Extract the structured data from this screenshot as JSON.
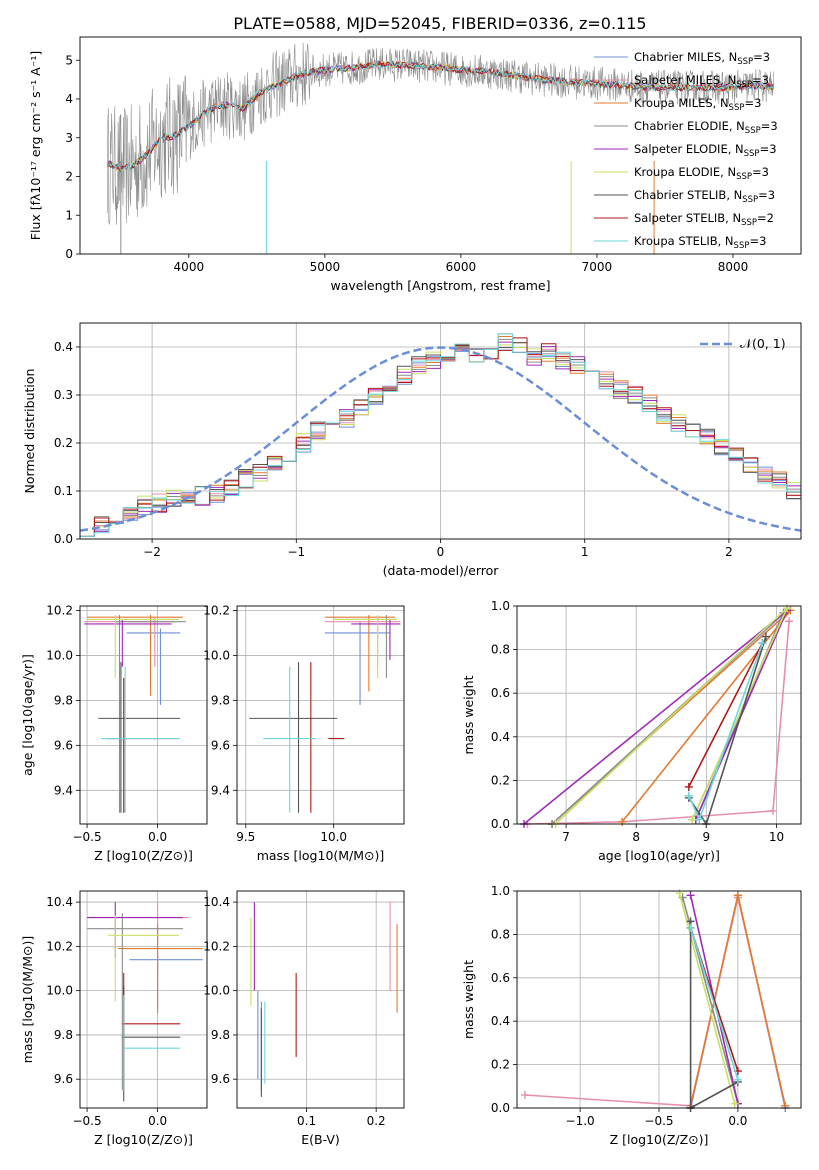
{
  "title": "PLATE=0588, MJD=52045, FIBERID=0336, z=0.115",
  "palette": [
    "#6f8fd6",
    "#e58fb0",
    "#e47a30",
    "#8c8c8c",
    "#a02ab8",
    "#c8e060",
    "#555555",
    "#b01818",
    "#6cd6dc"
  ],
  "chart_data": [
    {
      "type": "line",
      "xlabel": "wavelength [Angstrom, rest frame]",
      "ylabel": "Flux [fλ10⁻¹⁷ erg cm⁻² s⁻¹ A⁻¹]",
      "xlim": [
        3200,
        8500
      ],
      "ylim": [
        0,
        5.6
      ],
      "xticks": [
        4000,
        5000,
        6000,
        7000,
        8000
      ],
      "yticks": [
        0,
        1,
        2,
        3,
        4,
        5
      ],
      "grid": false,
      "legend": "top-right",
      "legend_entries": [
        {
          "pre": "Chabrier MILES, N",
          "sub": "SSP",
          "post": "=3"
        },
        {
          "pre": "Salpeter MILES, N",
          "sub": "SSP",
          "post": "=3"
        },
        {
          "pre": "Kroupa MILES, N",
          "sub": "SSP",
          "post": "=3"
        },
        {
          "pre": "Chabrier ELODIE, N",
          "sub": "SSP",
          "post": "=3"
        },
        {
          "pre": "Salpeter ELODIE, N",
          "sub": "SSP",
          "post": "=3"
        },
        {
          "pre": "Kroupa ELODIE, N",
          "sub": "SSP",
          "post": "=3"
        },
        {
          "pre": "Chabrier STELIB, N",
          "sub": "SSP",
          "post": "=3"
        },
        {
          "pre": "Salpeter STELIB, N",
          "sub": "SSP",
          "post": "=2"
        },
        {
          "pre": "Kroupa STELIB, N",
          "sub": "SSP",
          "post": "=3"
        }
      ],
      "continuum": {
        "x": [
          3400,
          3500,
          3600,
          3700,
          3800,
          3900,
          4000,
          4100,
          4200,
          4300,
          4400,
          4500,
          4600,
          4700,
          4800,
          4900,
          5000,
          5200,
          5400,
          5600,
          5800,
          6000,
          6200,
          6400,
          6600,
          6800,
          7000,
          7200,
          7400,
          7600,
          7800,
          8000,
          8200,
          8300
        ],
        "y": [
          2.35,
          2.2,
          2.3,
          2.6,
          3.0,
          3.05,
          3.3,
          3.6,
          3.8,
          3.85,
          3.75,
          4.1,
          4.3,
          4.45,
          4.6,
          4.7,
          4.75,
          4.8,
          4.9,
          4.88,
          4.82,
          4.75,
          4.7,
          4.6,
          4.5,
          4.45,
          4.4,
          4.35,
          4.3,
          4.3,
          4.3,
          4.3,
          4.35,
          4.3
        ]
      }
    },
    {
      "type": "histogram",
      "xlabel": "(data-model)/error",
      "ylabel": "Normed distribution",
      "xlim": [
        -2.5,
        2.5
      ],
      "ylim": [
        0,
        0.45
      ],
      "xticks": [
        -2,
        -1,
        0,
        1,
        2
      ],
      "yticks": [
        0.0,
        0.1,
        0.2,
        0.3,
        0.4
      ],
      "grid": true,
      "legend": "top-right",
      "legend_label": "𝒩(0, 1)",
      "bin_width": 0.1,
      "bins_start": -2.5,
      "mean_profile": [
        0.025,
        0.03,
        0.035,
        0.05,
        0.07,
        0.075,
        0.085,
        0.08,
        0.09,
        0.095,
        0.11,
        0.125,
        0.14,
        0.16,
        0.175,
        0.2,
        0.225,
        0.24,
        0.25,
        0.27,
        0.3,
        0.32,
        0.34,
        0.36,
        0.375,
        0.385,
        0.39,
        0.38,
        0.395,
        0.41,
        0.4,
        0.38,
        0.39,
        0.37,
        0.36,
        0.355,
        0.33,
        0.31,
        0.3,
        0.28,
        0.26,
        0.24,
        0.22,
        0.21,
        0.19,
        0.17,
        0.15,
        0.13,
        0.12,
        0.1,
        0.09,
        0.08,
        0.07,
        0.06,
        0.05,
        0.045,
        0.04,
        0.035,
        0.03,
        0.025,
        0.025
      ]
    },
    {
      "type": "scatter",
      "xlabel": "Z [log10(Z/Z⊙)]",
      "ylabel": "age [log10(age/yr)]",
      "xlim": [
        -0.55,
        0.35
      ],
      "ylim": [
        9.25,
        10.22
      ],
      "xticks": [
        -0.5,
        0.0
      ],
      "yticks": [
        9.4,
        9.6,
        9.8,
        10.0,
        10.2
      ],
      "grid": true,
      "crosses": [
        {
          "s": 0,
          "x": 0.02,
          "y": 10.1,
          "ex": [
            -0.22,
            0.16
          ],
          "ey": [
            9.78,
            10.12
          ]
        },
        {
          "s": 1,
          "x": -0.02,
          "y": 10.15,
          "ex": [
            -0.52,
            0.12
          ],
          "ey": [
            9.95,
            10.17
          ]
        },
        {
          "s": 2,
          "x": -0.05,
          "y": 10.17,
          "ex": [
            -0.5,
            0.18
          ],
          "ey": [
            9.82,
            10.18
          ]
        },
        {
          "s": 3,
          "x": -0.27,
          "y": 10.15,
          "ex": [
            -0.3,
            0.2
          ],
          "ey": [
            9.3,
            10.18
          ]
        },
        {
          "s": 4,
          "x": -0.25,
          "y": 10.14,
          "ex": [
            -0.52,
            0.1
          ],
          "ey": [
            9.95,
            10.16
          ]
        },
        {
          "s": 5,
          "x": -0.3,
          "y": 10.16,
          "ex": [
            -0.5,
            0.15
          ],
          "ey": [
            9.9,
            10.18
          ]
        },
        {
          "s": 6,
          "x": -0.26,
          "y": 9.72,
          "ex": [
            -0.42,
            0.16
          ],
          "ey": [
            9.3,
            9.97
          ]
        },
        {
          "s": 7,
          "x": -0.24,
          "y": 9.63,
          "ex": [
            -0.36,
            0.14
          ],
          "ey": [
            9.3,
            9.9
          ]
        },
        {
          "s": 8,
          "x": -0.23,
          "y": 9.63,
          "ex": [
            -0.4,
            0.16
          ],
          "ey": [
            9.3,
            9.95
          ]
        }
      ]
    },
    {
      "type": "scatter",
      "xlabel": "mass [log10(M/M⊙)]",
      "ylabel": "",
      "xlim": [
        9.45,
        10.4
      ],
      "ylim": [
        9.25,
        10.22
      ],
      "xticks": [
        9.5,
        10.0
      ],
      "yticks": [
        9.4,
        9.6,
        9.8,
        10.0,
        10.2
      ],
      "grid": true,
      "crosses": [
        {
          "s": 0,
          "x": 10.15,
          "y": 10.1,
          "ex": [
            9.95,
            10.32
          ],
          "ey": [
            9.78,
            10.15
          ]
        },
        {
          "s": 1,
          "x": 10.25,
          "y": 10.15,
          "ex": [
            9.95,
            10.38
          ],
          "ey": [
            9.95,
            10.17
          ]
        },
        {
          "s": 2,
          "x": 10.2,
          "y": 10.17,
          "ex": [
            9.95,
            10.35
          ],
          "ey": [
            9.84,
            10.18
          ]
        },
        {
          "s": 3,
          "x": 10.3,
          "y": 10.16,
          "ex": [
            10.0,
            10.36
          ],
          "ey": [
            9.9,
            10.18
          ]
        },
        {
          "s": 4,
          "x": 10.32,
          "y": 10.14,
          "ex": [
            10.1,
            10.38
          ],
          "ey": [
            9.98,
            10.16
          ]
        },
        {
          "s": 5,
          "x": 10.25,
          "y": 10.16,
          "ex": [
            10.0,
            10.36
          ],
          "ey": [
            9.9,
            10.18
          ]
        },
        {
          "s": 6,
          "x": 9.8,
          "y": 9.72,
          "ex": [
            9.52,
            10.02
          ],
          "ey": [
            9.3,
            9.97
          ]
        },
        {
          "s": 7,
          "x": 9.87,
          "y": 9.63,
          "ex": [
            9.97,
            10.06
          ],
          "ey": [
            9.3,
            9.97
          ]
        },
        {
          "s": 8,
          "x": 9.75,
          "y": 9.63,
          "ex": [
            9.6,
            9.9
          ],
          "ey": [
            9.3,
            9.95
          ]
        }
      ]
    },
    {
      "type": "line",
      "xlabel": "age [log10(age/yr)]",
      "ylabel": "mass weight",
      "xlim": [
        6.3,
        10.35
      ],
      "ylim": [
        0,
        1
      ],
      "xticks": [
        7,
        8,
        9,
        10
      ],
      "yticks": [
        0.0,
        0.2,
        0.4,
        0.6,
        0.8,
        1.0
      ],
      "grid": true,
      "series": [
        {
          "s": 0,
          "x": [
            6.8,
            10.15,
            8.8
          ],
          "y": [
            0.0,
            0.98,
            0.02
          ]
        },
        {
          "s": 1,
          "x": [
            6.45,
            7.8,
            9.95,
            10.18
          ],
          "y": [
            0.0,
            0.01,
            0.06,
            0.93
          ]
        },
        {
          "s": 2,
          "x": [
            6.8,
            10.2,
            7.8
          ],
          "y": [
            0.0,
            0.98,
            0.01
          ]
        },
        {
          "s": 3,
          "x": [
            6.8,
            10.1,
            8.85
          ],
          "y": [
            0.0,
            0.97,
            0.02
          ]
        },
        {
          "s": 4,
          "x": [
            6.4,
            10.15,
            8.85
          ],
          "y": [
            0.0,
            0.98,
            0.02
          ]
        },
        {
          "s": 5,
          "x": [
            6.85,
            10.15,
            8.8
          ],
          "y": [
            0.0,
            0.99,
            0.02
          ]
        },
        {
          "s": 6,
          "x": [
            8.75,
            9.0,
            9.85
          ],
          "y": [
            0.12,
            0.0,
            0.86
          ]
        },
        {
          "s": 7,
          "x": [
            8.75,
            9.8
          ],
          "y": [
            0.17,
            0.83
          ]
        },
        {
          "s": 8,
          "x": [
            8.75,
            8.9,
            9.8
          ],
          "y": [
            0.13,
            0.02,
            0.83
          ]
        }
      ]
    },
    {
      "type": "scatter",
      "xlabel": "Z [log10(Z/Z⊙)]",
      "ylabel": "mass [log10(M/M⊙)]",
      "xlim": [
        -0.55,
        0.35
      ],
      "ylim": [
        9.47,
        10.45
      ],
      "xticks": [
        -0.5,
        0.0
      ],
      "yticks": [
        9.6,
        9.8,
        10.0,
        10.2,
        10.4
      ],
      "grid": true,
      "crosses": [
        {
          "s": 0,
          "x": 0.0,
          "y": 10.14,
          "ex": [
            -0.2,
            0.32
          ],
          "ey": [
            9.92,
            10.17
          ]
        },
        {
          "s": 1,
          "x": 0.0,
          "y": 10.33,
          "ex": [
            -0.5,
            0.22
          ],
          "ey": [
            10.1,
            10.4
          ]
        },
        {
          "s": 2,
          "x": 0.0,
          "y": 10.19,
          "ex": [
            -0.28,
            0.32
          ],
          "ey": [
            9.9,
            10.3
          ]
        },
        {
          "s": 3,
          "x": -0.25,
          "y": 10.28,
          "ex": [
            -0.5,
            0.18
          ],
          "ey": [
            9.55,
            10.35
          ]
        },
        {
          "s": 4,
          "x": -0.3,
          "y": 10.33,
          "ex": [
            -0.5,
            0.18
          ],
          "ey": [
            10.15,
            10.4
          ]
        },
        {
          "s": 5,
          "x": -0.3,
          "y": 10.25,
          "ex": [
            -0.35,
            0.15
          ],
          "ey": [
            9.95,
            10.34
          ]
        },
        {
          "s": 6,
          "x": -0.24,
          "y": 9.79,
          "ex": [
            -0.25,
            0.16
          ],
          "ey": [
            9.5,
            10.02
          ]
        },
        {
          "s": 7,
          "x": -0.24,
          "y": 9.85,
          "ex": [
            -0.25,
            0.16
          ],
          "ey": [
            9.55,
            10.08
          ]
        },
        {
          "s": 8,
          "x": -0.24,
          "y": 9.74,
          "ex": [
            -0.24,
            0.16
          ],
          "ey": [
            9.55,
            9.98
          ]
        }
      ]
    },
    {
      "type": "scatter",
      "xlabel": "E(B-V)",
      "ylabel": "",
      "xlim": [
        0.0,
        0.24
      ],
      "ylim": [
        9.47,
        10.45
      ],
      "xticks": [
        0.1,
        0.2
      ],
      "yticks": [
        9.6,
        9.8,
        10.0,
        10.2,
        10.4
      ],
      "grid": true,
      "crosses": [
        {
          "s": 0,
          "x": 0.03,
          "y": 9.8,
          "ex": [
            0.03,
            0.03
          ],
          "ey": [
            9.6,
            10.0
          ]
        },
        {
          "s": 1,
          "x": 0.22,
          "y": 10.25,
          "ex": [
            0.22,
            0.22
          ],
          "ey": [
            10.0,
            10.4
          ]
        },
        {
          "s": 2,
          "x": 0.23,
          "y": 10.1,
          "ex": [
            0.23,
            0.23
          ],
          "ey": [
            9.9,
            10.3
          ]
        },
        {
          "s": 3,
          "x": 0.035,
          "y": 9.75,
          "ex": [
            0.035,
            0.035
          ],
          "ey": [
            9.55,
            9.95
          ]
        },
        {
          "s": 4,
          "x": 0.025,
          "y": 10.2,
          "ex": [
            0.025,
            0.025
          ],
          "ey": [
            10.0,
            10.4
          ]
        },
        {
          "s": 5,
          "x": 0.02,
          "y": 10.1,
          "ex": [
            0.02,
            0.02
          ],
          "ey": [
            9.93,
            10.33
          ]
        },
        {
          "s": 6,
          "x": 0.035,
          "y": 9.7,
          "ex": [
            0.035,
            0.035
          ],
          "ey": [
            9.52,
            9.92
          ]
        },
        {
          "s": 7,
          "x": 0.085,
          "y": 9.9,
          "ex": [
            0.085,
            0.085
          ],
          "ey": [
            9.7,
            10.08
          ]
        },
        {
          "s": 8,
          "x": 0.04,
          "y": 9.75,
          "ex": [
            0.04,
            0.04
          ],
          "ey": [
            9.58,
            9.95
          ]
        }
      ]
    },
    {
      "type": "line",
      "xlabel": "Z [log10(Z/Z⊙)]",
      "ylabel": "mass weight",
      "xlim": [
        -1.4,
        0.4
      ],
      "ylim": [
        0,
        1
      ],
      "xticks": [
        -1.0,
        -0.5,
        0.0
      ],
      "yticks": [
        0.0,
        0.2,
        0.4,
        0.6,
        0.8,
        1.0
      ],
      "grid": true,
      "series": [
        {
          "s": 0,
          "x": [
            -0.3,
            0.0,
            0.3
          ],
          "y": [
            0.0,
            0.98,
            0.0
          ]
        },
        {
          "s": 1,
          "x": [
            -1.35,
            -0.3,
            0.0,
            0.3
          ],
          "y": [
            0.06,
            0.01,
            0.97,
            0.01
          ]
        },
        {
          "s": 2,
          "x": [
            -0.3,
            0.0,
            0.3
          ],
          "y": [
            0.01,
            0.98,
            0.01
          ]
        },
        {
          "s": 3,
          "x": [
            -0.35,
            0.0
          ],
          "y": [
            0.97,
            0.02
          ]
        },
        {
          "s": 4,
          "x": [
            -0.3,
            0.0
          ],
          "y": [
            0.98,
            0.02
          ]
        },
        {
          "s": 5,
          "x": [
            -0.37,
            -0.02
          ],
          "y": [
            0.99,
            0.02
          ]
        },
        {
          "s": 6,
          "x": [
            -0.3,
            -0.3,
            0.0
          ],
          "y": [
            0.86,
            0.0,
            0.12
          ]
        },
        {
          "s": 7,
          "x": [
            -0.3,
            0.0
          ],
          "y": [
            0.83,
            0.17
          ]
        },
        {
          "s": 8,
          "x": [
            -0.3,
            0.0
          ],
          "y": [
            0.83,
            0.13
          ]
        }
      ]
    }
  ]
}
